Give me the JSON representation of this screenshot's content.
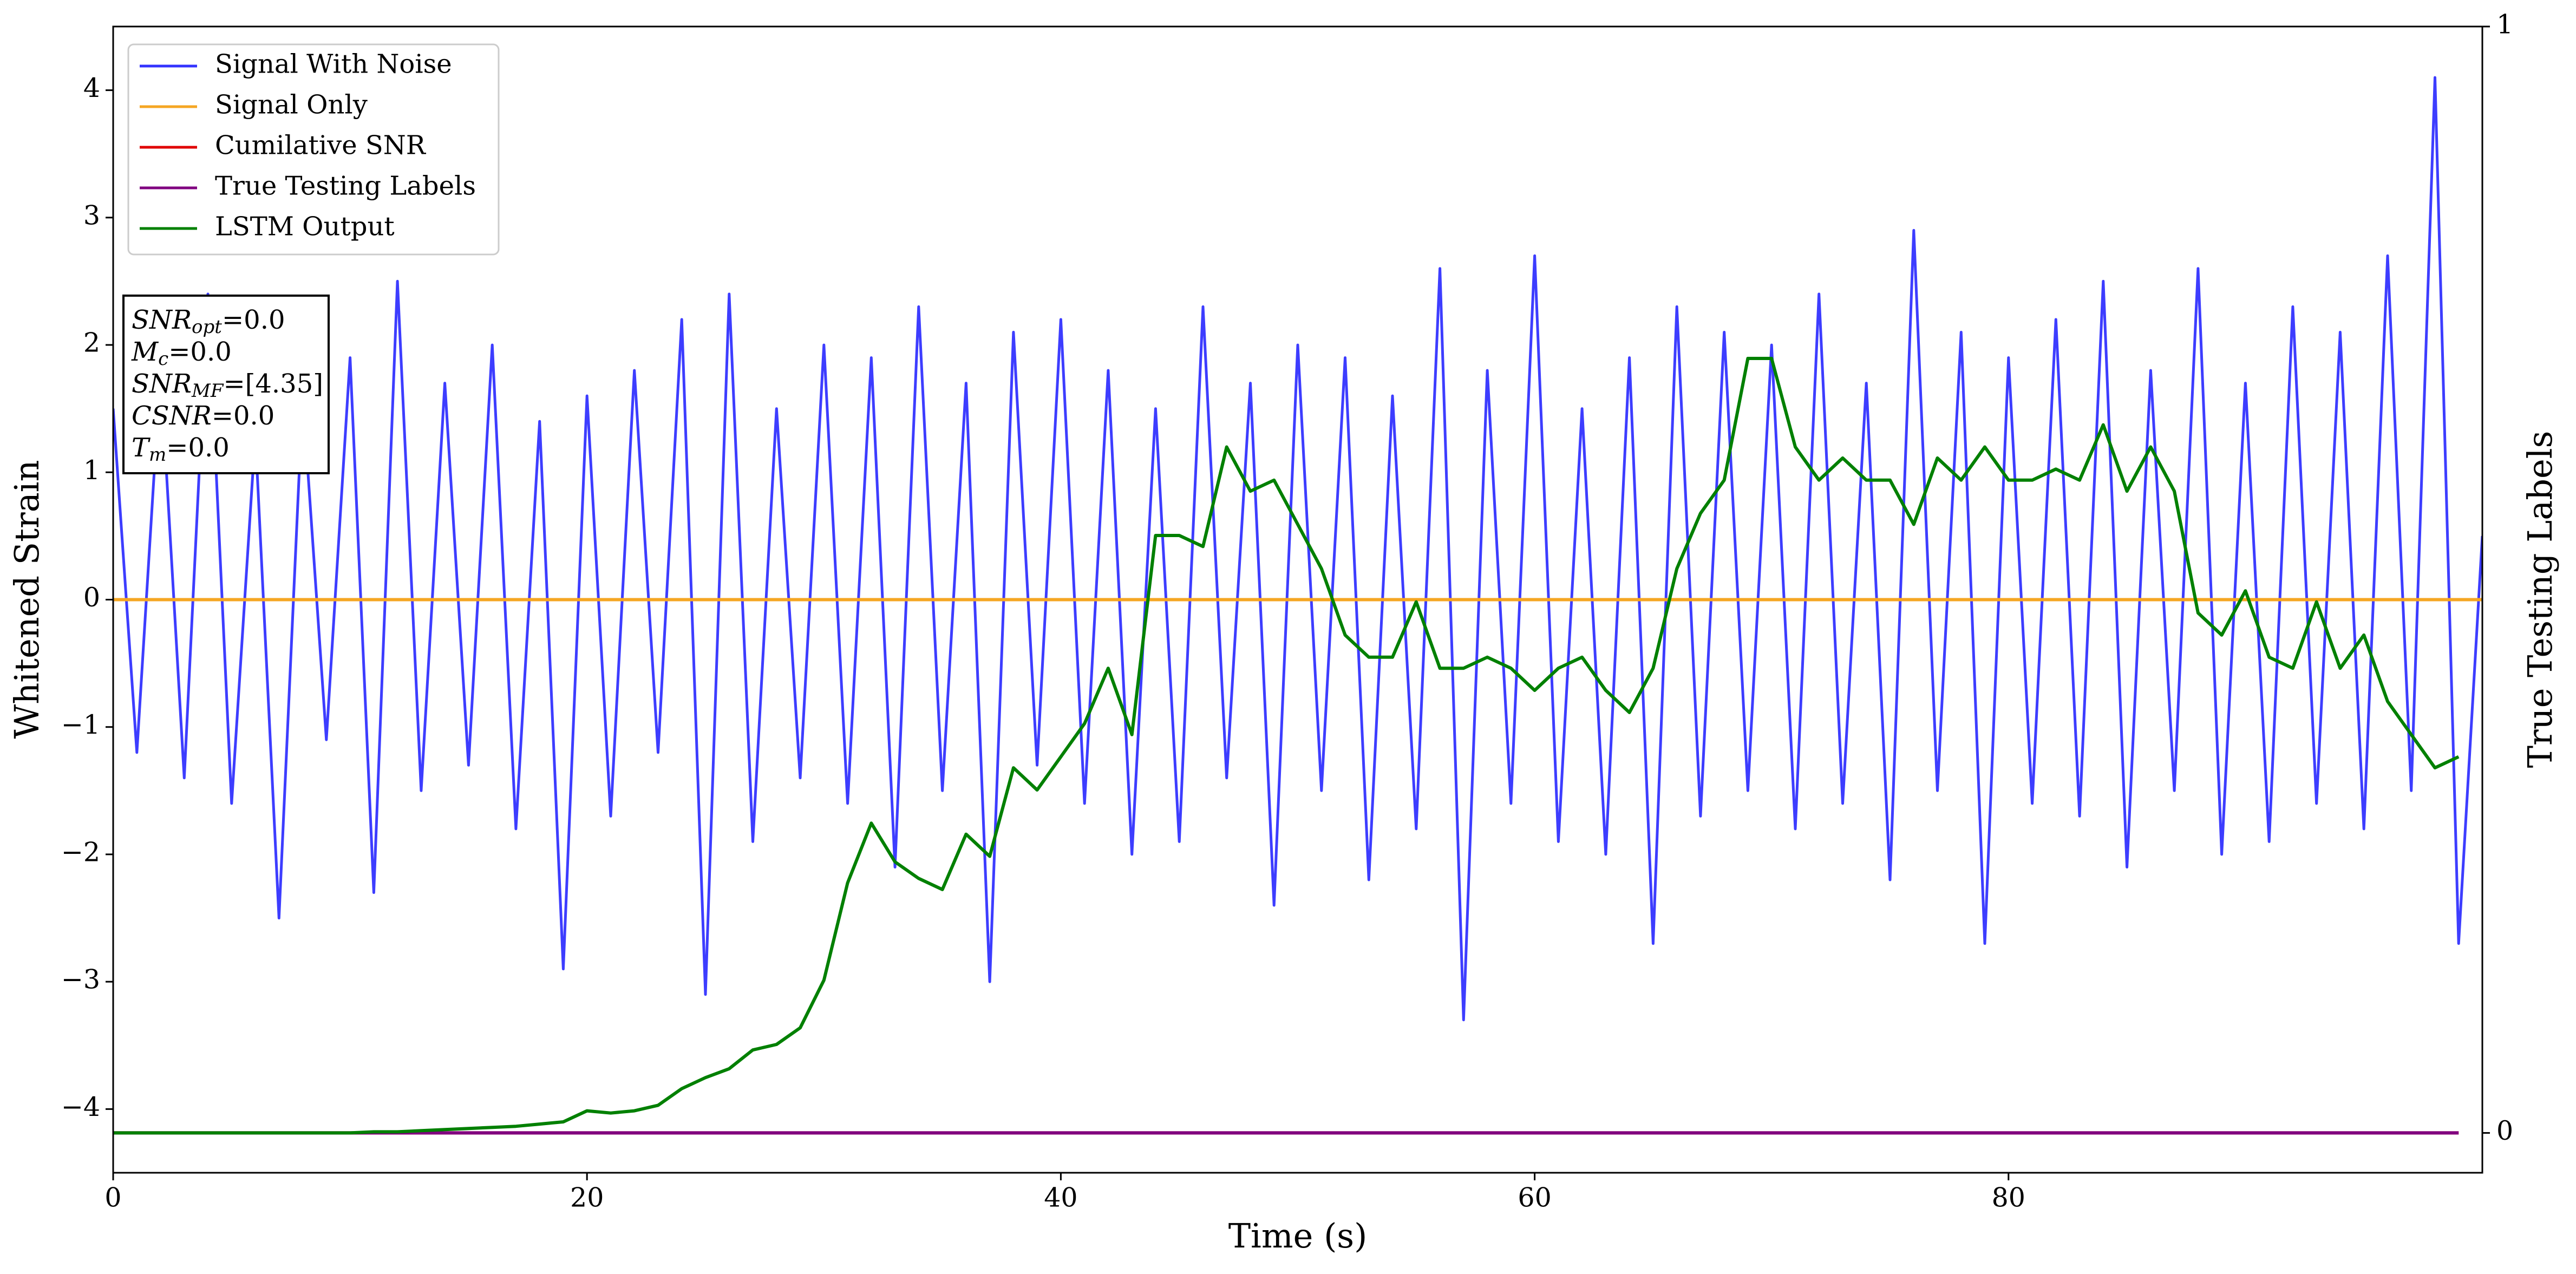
{
  "chart_data": {
    "type": "line",
    "xlabel": "Time (s)",
    "ylabel": "Whitened Strain",
    "y2label": "True Testing Labels",
    "xlim": [
      0,
      100
    ],
    "ylim": [
      -4.5,
      4.5
    ],
    "y2lim": [
      -0.036,
      1.0
    ],
    "xticks": [
      0,
      20,
      40,
      60,
      80
    ],
    "yticks": [
      {
        "value": -4,
        "label": "−4"
      },
      {
        "value": -3,
        "label": "−3"
      },
      {
        "value": -2,
        "label": "−2"
      },
      {
        "value": -1,
        "label": "−1"
      },
      0,
      1,
      2,
      3,
      4
    ],
    "y2ticks": [
      0,
      1
    ],
    "legend": "upper left",
    "grid": false,
    "x": [
      0,
      1,
      2,
      3,
      4,
      5,
      6,
      7,
      8,
      9,
      10,
      11,
      12,
      13,
      14,
      15,
      16,
      17,
      18,
      19,
      20,
      21,
      22,
      23,
      24,
      25,
      26,
      27,
      28,
      29,
      30,
      31,
      32,
      33,
      34,
      35,
      36,
      37,
      38,
      39,
      40,
      41,
      42,
      43,
      44,
      45,
      46,
      47,
      48,
      49,
      50,
      51,
      52,
      53,
      54,
      55,
      56,
      57,
      58,
      59,
      60,
      61,
      62,
      63,
      64,
      65,
      66,
      67,
      68,
      69,
      70,
      71,
      72,
      73,
      74,
      75,
      76,
      77,
      78,
      79,
      80,
      81,
      82,
      83,
      84,
      85,
      86,
      87,
      88,
      89,
      90,
      91,
      92,
      93,
      94,
      95,
      96,
      97,
      98,
      99,
      100
    ],
    "series": [
      {
        "name": "Signal With Noise",
        "color": "#3333ff",
        "values": [
          1.5,
          -1.2,
          1.8,
          -1.4,
          2.4,
          -1.6,
          1.3,
          -2.5,
          1.6,
          -1.1,
          1.9,
          -2.3,
          2.5,
          -1.5,
          1.7,
          -1.3,
          2.0,
          -1.8,
          1.4,
          -2.9,
          1.6,
          -1.7,
          1.8,
          -1.2,
          2.2,
          -3.1,
          2.4,
          -1.9,
          1.5,
          -1.4,
          2.0,
          -1.6,
          1.9,
          -2.1,
          2.3,
          -1.5,
          1.7,
          -3.0,
          2.1,
          -1.3,
          2.2,
          -1.6,
          1.8,
          -2.0,
          1.5,
          -1.9,
          2.3,
          -1.4,
          1.7,
          -2.4,
          2.0,
          -1.5,
          1.9,
          -2.2,
          1.6,
          -1.8,
          2.6,
          -3.3,
          1.8,
          -1.6,
          2.7,
          -1.9,
          1.5,
          -2.0,
          1.9,
          -2.7,
          2.3,
          -1.7,
          2.1,
          -1.5,
          2.0,
          -1.8,
          2.4,
          -1.6,
          1.7,
          -2.2,
          2.9,
          -1.5,
          2.1,
          -2.7,
          1.9,
          -1.6,
          2.2,
          -1.7,
          2.5,
          -2.1,
          1.8,
          -1.5,
          2.6,
          -2.0,
          1.7,
          -1.9,
          2.3,
          -1.6,
          2.1,
          -1.8,
          2.7,
          -1.5,
          4.1,
          -2.7,
          0.5
        ]
      },
      {
        "name": "Signal Only",
        "color": "#f5a623",
        "x": [
          0,
          100
        ],
        "values": [
          0,
          0
        ]
      },
      {
        "name": "Cumilative SNR",
        "color": "#e00000",
        "axis": "y2",
        "x": [
          0,
          99
        ],
        "values": [
          0,
          0
        ]
      },
      {
        "name": "True Testing Labels",
        "color": "#800080",
        "axis": "y2",
        "x": [
          0,
          99
        ],
        "values": [
          0,
          0
        ]
      },
      {
        "name": "LSTM Output",
        "color": "#008000",
        "axis": "y2",
        "values": [
          0,
          0,
          0,
          0,
          0,
          0,
          0,
          0,
          0,
          0,
          0,
          0.001,
          0.001,
          0.002,
          0.003,
          0.004,
          0.005,
          0.006,
          0.008,
          0.01,
          0.02,
          0.018,
          0.02,
          0.025,
          0.04,
          0.05,
          0.058,
          0.075,
          0.08,
          0.095,
          0.138,
          0.226,
          0.28,
          0.245,
          0.23,
          0.22,
          0.27,
          0.25,
          0.33,
          0.31,
          0.34,
          0.37,
          0.42,
          0.36,
          0.54,
          0.54,
          0.53,
          0.62,
          0.58,
          0.59,
          0.55,
          0.51,
          0.45,
          0.43,
          0.43,
          0.48,
          0.42,
          0.42,
          0.43,
          0.42,
          0.4,
          0.42,
          0.43,
          0.4,
          0.38,
          0.42,
          0.51,
          0.56,
          0.59,
          0.7,
          0.7,
          0.62,
          0.59,
          0.61,
          0.59,
          0.59,
          0.55,
          0.61,
          0.59,
          0.62,
          0.59,
          0.59,
          0.6,
          0.59,
          0.64,
          0.58,
          0.62,
          0.58,
          0.47,
          0.45,
          0.49,
          0.43,
          0.42,
          0.48,
          0.42,
          0.45,
          0.39,
          0.36,
          0.33,
          0.34,
          null
        ]
      }
    ],
    "annotations": [
      {
        "symbol": "SNR",
        "subscript": "opt",
        "text": "=0.0"
      },
      {
        "symbol": "M",
        "subscript": "c",
        "text": "=0.0"
      },
      {
        "symbol": "SNR",
        "subscript": "MF",
        "text": "=[4.35]"
      },
      {
        "symbol": "CSNR",
        "text": "=0.0"
      },
      {
        "symbol": "T",
        "subscript": "m",
        "text": "=0.0"
      }
    ]
  }
}
